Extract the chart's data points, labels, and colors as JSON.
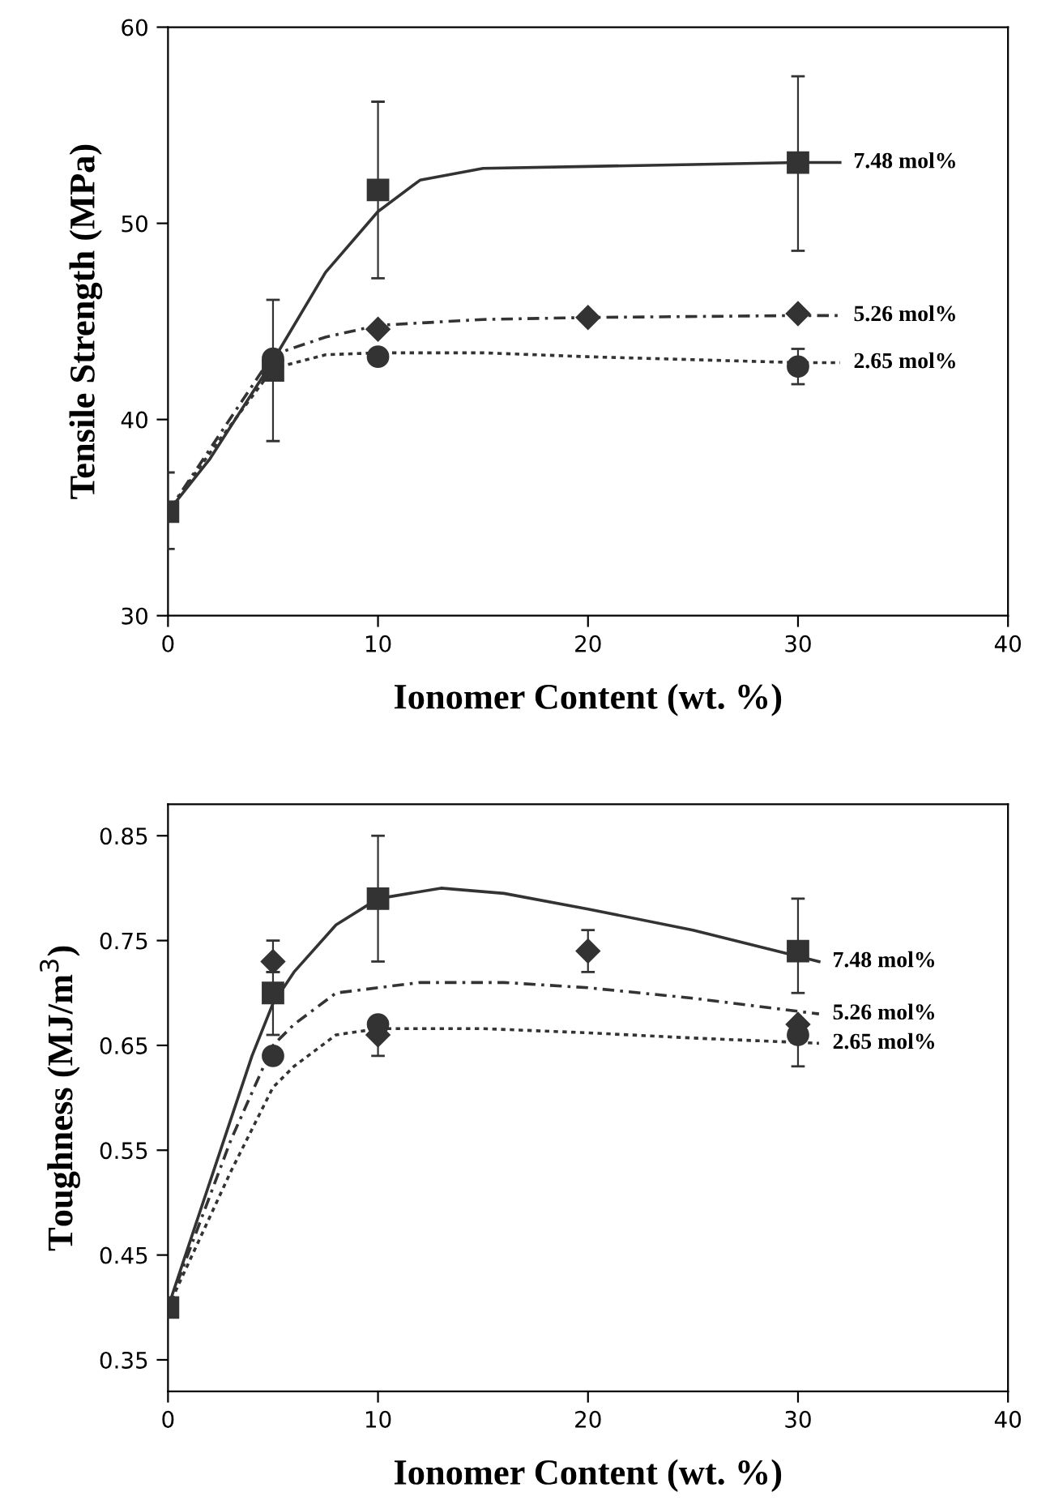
{
  "chart_data": [
    {
      "type": "scatter",
      "xlabel": "Ionomer Content (wt. %)",
      "ylabel": "Tensile Strength (MPa)",
      "xlim": [
        0,
        40
      ],
      "ylim": [
        30,
        60
      ],
      "xticks": [
        0,
        10,
        20,
        30,
        40
      ],
      "yticks": [
        30,
        40,
        50,
        60
      ],
      "grid": false,
      "legend": false,
      "series": [
        {
          "marker": "square",
          "color": "#333333",
          "x": [
            0,
            5,
            10,
            30
          ],
          "values": [
            35.3,
            42.5,
            51.7,
            53.1
          ],
          "errors": [
            [
              33.4,
              37.3
            ],
            [
              38.9,
              46.1
            ],
            [
              47.2,
              56.2
            ],
            [
              48.6,
              57.5
            ]
          ]
        },
        {
          "marker": "diamond",
          "color": "#333333",
          "x": [
            10,
            20,
            30
          ],
          "values": [
            44.6,
            45.2,
            45.4
          ],
          "errors": [
            null,
            null,
            null
          ]
        },
        {
          "marker": "circle",
          "color": "#333333",
          "x": [
            5,
            10,
            30
          ],
          "values": [
            43.1,
            43.2,
            42.7
          ],
          "errors": [
            null,
            null,
            [
              41.8,
              43.6
            ]
          ]
        },
        {
          "type": "line",
          "name": "7.48 mol%",
          "line_style": "solid",
          "color": "#333333",
          "x": [
            0,
            2,
            5,
            7.5,
            10,
            12,
            15,
            20,
            25,
            30,
            32
          ],
          "values": [
            35.3,
            38,
            43,
            47.5,
            50.6,
            52.2,
            52.8,
            52.9,
            53.0,
            53.1,
            53.1
          ]
        },
        {
          "type": "line",
          "name": "5.26 mol%",
          "line_style": "dashed",
          "color": "#333333",
          "x": [
            0,
            2,
            5,
            7.5,
            10,
            15,
            20,
            30,
            32
          ],
          "values": [
            35.3,
            38.5,
            43.3,
            44.2,
            44.8,
            45.1,
            45.2,
            45.3,
            45.3
          ]
        },
        {
          "type": "line",
          "name": "2.65 mol%",
          "line_style": "dotted",
          "color": "#333333",
          "x": [
            0,
            2,
            5,
            7.5,
            10,
            15,
            20,
            30,
            32
          ],
          "values": [
            35.3,
            38.3,
            42.6,
            43.3,
            43.4,
            43.4,
            43.2,
            42.9,
            42.9
          ]
        }
      ]
    },
    {
      "type": "scatter",
      "xlabel": "Ionomer Content (wt. %)",
      "ylabel": "Toughness (MJ/m$^{3}$)",
      "xlim": [
        0,
        40
      ],
      "ylim": [
        0.32,
        0.88
      ],
      "xticks": [
        0,
        10,
        20,
        30,
        40
      ],
      "yticks": [
        0.35,
        0.45,
        0.55,
        0.65,
        0.75,
        0.85
      ],
      "grid": false,
      "legend": false,
      "series": [
        {
          "marker": "square",
          "color": "#333333",
          "x": [
            0,
            5,
            10,
            30
          ],
          "values": [
            0.4,
            0.7,
            0.79,
            0.74
          ],
          "errors": [
            null,
            [
              0.66,
              0.72
            ],
            [
              0.73,
              0.85
            ],
            [
              0.7,
              0.79
            ]
          ]
        },
        {
          "marker": "diamond",
          "color": "#333333",
          "x": [
            5,
            10,
            20,
            30
          ],
          "values": [
            0.73,
            0.66,
            0.74,
            0.67
          ],
          "errors": [
            [
              0.72,
              0.75
            ],
            null,
            [
              0.72,
              0.76
            ],
            null
          ]
        },
        {
          "marker": "circle",
          "color": "#333333",
          "x": [
            5,
            10,
            30
          ],
          "values": [
            0.64,
            0.67,
            0.66
          ],
          "errors": [
            null,
            [
              0.64,
              0.67
            ],
            [
              0.63,
              0.66
            ]
          ]
        },
        {
          "type": "line",
          "name": "7.48 mol%",
          "line_style": "solid",
          "color": "#333333",
          "x": [
            0,
            2,
            4,
            5,
            6,
            8,
            10,
            13,
            16,
            20,
            25,
            30,
            31
          ],
          "values": [
            0.4,
            0.52,
            0.64,
            0.69,
            0.72,
            0.765,
            0.79,
            0.8,
            0.795,
            0.78,
            0.76,
            0.735,
            0.73
          ]
        },
        {
          "type": "line",
          "name": "5.26 mol%",
          "line_style": "dashed",
          "color": "#333333",
          "x": [
            0,
            3,
            5,
            6,
            8,
            12,
            16,
            20,
            25,
            31
          ],
          "values": [
            0.4,
            0.56,
            0.65,
            0.67,
            0.7,
            0.71,
            0.71,
            0.705,
            0.695,
            0.68
          ]
        },
        {
          "type": "line",
          "name": "2.65 mol%",
          "line_style": "dotted",
          "color": "#333333",
          "x": [
            0,
            3,
            5,
            6,
            8,
            10,
            15,
            20,
            25,
            31
          ],
          "values": [
            0.4,
            0.53,
            0.61,
            0.63,
            0.66,
            0.666,
            0.666,
            0.662,
            0.657,
            0.652
          ]
        }
      ]
    }
  ]
}
